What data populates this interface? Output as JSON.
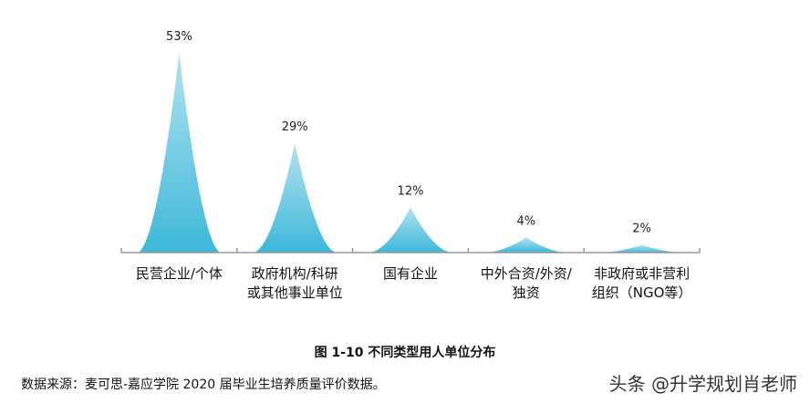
{
  "chart_data": {
    "type": "area",
    "style": "triangle-peak",
    "title": "图 1-10 不同类型用人单位分布",
    "categories": [
      "民营企业/个体",
      "政府机构/科研或其他事业单位",
      "国有企业",
      "中外合资/外资/独资",
      "非政府或非营利组织（NGO等）"
    ],
    "values": [
      53,
      29,
      12,
      4,
      2
    ],
    "value_labels": [
      "53%",
      "29%",
      "12%",
      "4%",
      "2%"
    ],
    "xlabel": "",
    "ylabel": "",
    "ylim": [
      0,
      55
    ],
    "grid": false,
    "legend": "none",
    "colors": {
      "fill_bottom": "#3db8d9",
      "fill_top": "#a8deee",
      "axis": "#999999"
    }
  },
  "categories_display": [
    "民营企业/个体",
    "政府机构/科研\n或其他事业单位",
    "国有企业",
    "中外合资/外资/\n独资",
    "非政府或非营利\n组织（NGO等）"
  ],
  "caption": "图 1-10 不同类型用人单位分布",
  "source": "数据来源：麦可思-嘉应学院 2020 届毕业生培养质量评价数据。",
  "watermark": "头条 @升学规划肖老师"
}
